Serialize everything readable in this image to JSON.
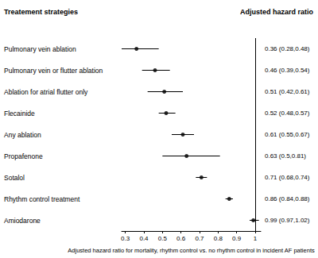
{
  "chart_data": {
    "type": "forest",
    "y_label": "Treatement strategies",
    "value_label_header": "Adjusted hazard ratio",
    "x_label": "Adjusted hazard ratio for mortality, rhythm control vs. no rhythm control in incident AF patients",
    "categories": [
      "Pulmonary vein ablation",
      "Pulmonary vein or flutter ablation",
      "Ablation for atrial flutter only",
      "Flecainide",
      "Any ablation",
      "Propafenone",
      "Sotalol",
      "Rhythm control treatment",
      "Amiodarone"
    ],
    "values": [
      0.36,
      0.46,
      0.51,
      0.52,
      0.61,
      0.63,
      0.71,
      0.86,
      0.99
    ],
    "lower": [
      0.28,
      0.39,
      0.42,
      0.48,
      0.55,
      0.5,
      0.68,
      0.84,
      0.97
    ],
    "upper": [
      0.48,
      0.54,
      0.61,
      0.57,
      0.67,
      0.81,
      0.74,
      0.88,
      1.02
    ],
    "value_labels": [
      "0.36 (0.28,0.48)",
      "0.46 (0.39,0.54)",
      "0.51 (0.42,0.61)",
      "0.52 (0.48,0.57)",
      "0.61 (0.55,0.67)",
      "0.63 (0.5,0.81)",
      "0.71 (0.68,0.74)",
      "0.86 (0.84,0.88)",
      "0.99 (0.97,1.02)"
    ],
    "reference_line": 1,
    "color": "#000000",
    "xlim": [
      0.28,
      1.03
    ],
    "xticks": [
      0.3,
      0.4,
      0.5,
      0.6,
      0.7,
      0.8,
      0.9,
      1
    ],
    "grid": false
  }
}
